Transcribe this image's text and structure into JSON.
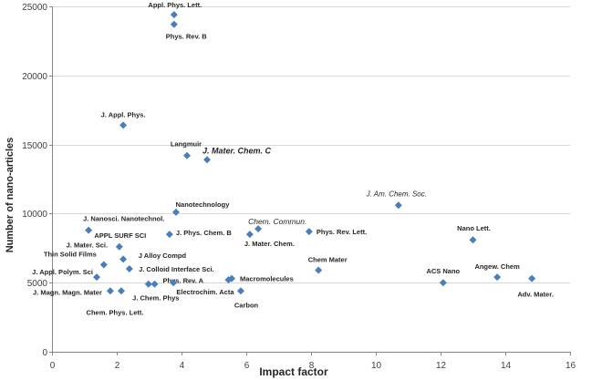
{
  "chart_data": {
    "type": "scatter",
    "xlabel": "Impact factor",
    "ylabel": "Number of nano-articles",
    "xlim": [
      0,
      16
    ],
    "ylim": [
      0,
      25000
    ],
    "xticks": [
      0,
      2,
      4,
      6,
      8,
      10,
      12,
      14,
      16
    ],
    "yticks": [
      0,
      5000,
      10000,
      15000,
      20000,
      25000
    ],
    "grid": "horizontal",
    "legend": "none",
    "marker": "diamond",
    "marker_color": "#4A7EBB",
    "points": [
      {
        "label": "Appl. Phys. Lett.",
        "x": 3.77,
        "y": 24400
      },
      {
        "label": "Phys. Rev. B",
        "x": 3.77,
        "y": 23700
      },
      {
        "label": "J. Appl. Phys.",
        "x": 2.2,
        "y": 16400
      },
      {
        "label": "Langmuir",
        "x": 4.17,
        "y": 14200
      },
      {
        "label": "J. Mater. Chem. C",
        "x": 4.79,
        "y": 13900
      },
      {
        "label": "Nanotechnology",
        "x": 3.83,
        "y": 10100
      },
      {
        "label": "J. Am. Chem. Soc.",
        "x": 10.7,
        "y": 10600
      },
      {
        "label": "J. Nanosci. Nanotechnol.",
        "x": 1.13,
        "y": 8800
      },
      {
        "label": "J. Phys. Chem. B",
        "x": 3.63,
        "y": 8500
      },
      {
        "label": "Chem. Commun.",
        "x": 6.37,
        "y": 8900
      },
      {
        "label": "J. Mater. Chem.",
        "x": 6.11,
        "y": 8500
      },
      {
        "label": "Phys. Rev. Lett.",
        "x": 7.94,
        "y": 8700
      },
      {
        "label": "Nano Lett.",
        "x": 13.0,
        "y": 8100
      },
      {
        "label": "APPL SURF SCI",
        "x": 2.08,
        "y": 7600
      },
      {
        "label": "J. Mater. Sci.",
        "x": 2.2,
        "y": 6700
      },
      {
        "label": "Thin Solid Films",
        "x": 1.6,
        "y": 6300
      },
      {
        "label": "J Alloy Compd",
        "x": 2.39,
        "y": 6000
      },
      {
        "label": "J. Appl. Polym. Sci",
        "x": 1.38,
        "y": 5400
      },
      {
        "label": "J. Colloid Interface Sci.",
        "x": 3.75,
        "y": 5000
      },
      {
        "label": "J. Chem. Phys",
        "x": 2.98,
        "y": 4900
      },
      {
        "label": "Phys. Rev. A",
        "x": 3.17,
        "y": 4900
      },
      {
        "label": "Electrochim. Acta",
        "x": 5.45,
        "y": 5200
      },
      {
        "label": "Macromolecules",
        "x": 5.55,
        "y": 5300
      },
      {
        "label": "Carbon",
        "x": 5.83,
        "y": 4400
      },
      {
        "label": "J. Magn. Magn. Mater",
        "x": 1.8,
        "y": 4400
      },
      {
        "label": "Chem. Phys. Lett.",
        "x": 2.14,
        "y": 4400
      },
      {
        "label": "Chem Mater",
        "x": 8.23,
        "y": 5900
      },
      {
        "label": "ACS Nano",
        "x": 12.08,
        "y": 5000
      },
      {
        "label": "Angew. Chem",
        "x": 13.75,
        "y": 5400
      },
      {
        "label": "Adv. Mater.",
        "x": 14.82,
        "y": 5300
      }
    ]
  }
}
